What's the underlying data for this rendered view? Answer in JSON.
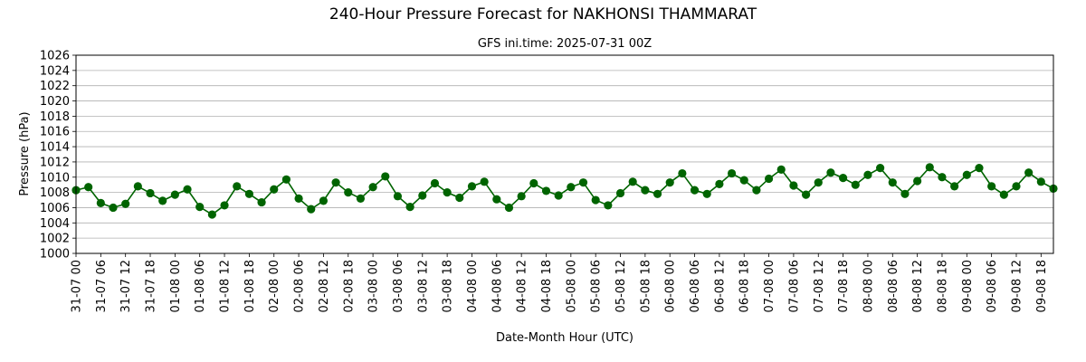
{
  "chart_data": {
    "type": "line",
    "title": "240-Hour Pressure Forecast for NAKHONSI THAMMARAT",
    "subtitle": "GFS ini.time: 2025-07-31 00Z",
    "xlabel": "Date-Month Hour (UTC)",
    "ylabel": "Pressure (hPa)",
    "ylim": [
      1000,
      1026
    ],
    "yticks": [
      1000,
      1002,
      1004,
      1006,
      1008,
      1010,
      1012,
      1014,
      1016,
      1018,
      1020,
      1022,
      1024,
      1026
    ],
    "grid": "horizontal",
    "line_color": "#006400",
    "x": [
      "31-07 00",
      "31-07 03",
      "31-07 06",
      "31-07 09",
      "31-07 12",
      "31-07 15",
      "31-07 18",
      "31-07 21",
      "01-08 00",
      "01-08 03",
      "01-08 06",
      "01-08 09",
      "01-08 12",
      "01-08 15",
      "01-08 18",
      "01-08 21",
      "02-08 00",
      "02-08 03",
      "02-08 06",
      "02-08 09",
      "02-08 12",
      "02-08 15",
      "02-08 18",
      "02-08 21",
      "03-08 00",
      "03-08 03",
      "03-08 06",
      "03-08 09",
      "03-08 12",
      "03-08 15",
      "03-08 18",
      "03-08 21",
      "04-08 00",
      "04-08 03",
      "04-08 06",
      "04-08 09",
      "04-08 12",
      "04-08 15",
      "04-08 18",
      "04-08 21",
      "05-08 00",
      "05-08 03",
      "05-08 06",
      "05-08 09",
      "05-08 12",
      "05-08 15",
      "05-08 18",
      "05-08 21",
      "06-08 00",
      "06-08 03",
      "06-08 06",
      "06-08 09",
      "06-08 12",
      "06-08 15",
      "06-08 18",
      "06-08 21",
      "07-08 00",
      "07-08 03",
      "07-08 06",
      "07-08 09",
      "07-08 12",
      "07-08 15",
      "07-08 18",
      "07-08 21",
      "08-08 00",
      "08-08 03",
      "08-08 06",
      "08-08 09",
      "08-08 12",
      "08-08 15",
      "08-08 18",
      "08-08 21",
      "09-08 00",
      "09-08 03",
      "09-08 06",
      "09-08 09",
      "09-08 12",
      "09-08 15",
      "09-08 18",
      "09-08 21"
    ],
    "xticks": [
      "31-07 00",
      "31-07 06",
      "31-07 12",
      "31-07 18",
      "01-08 00",
      "01-08 06",
      "01-08 12",
      "01-08 18",
      "02-08 00",
      "02-08 06",
      "02-08 12",
      "02-08 18",
      "03-08 00",
      "03-08 06",
      "03-08 12",
      "03-08 18",
      "04-08 00",
      "04-08 06",
      "04-08 12",
      "04-08 18",
      "05-08 00",
      "05-08 06",
      "05-08 12",
      "05-08 18",
      "06-08 00",
      "06-08 06",
      "06-08 12",
      "06-08 18",
      "07-08 00",
      "07-08 06",
      "07-08 12",
      "07-08 18",
      "08-08 00",
      "08-08 06",
      "08-08 12",
      "08-08 18",
      "09-08 00",
      "09-08 06",
      "09-08 12",
      "09-08 18"
    ],
    "series": [
      {
        "values": [
          1008.3,
          1008.7,
          1006.6,
          1006.0,
          1006.5,
          1008.8,
          1007.9,
          1006.9,
          1007.7,
          1008.4,
          1006.1,
          1005.1,
          1006.3,
          1008.8,
          1007.8,
          1006.7,
          1008.4,
          1009.7,
          1007.2,
          1005.8,
          1006.9,
          1009.3,
          1008.0,
          1007.2,
          1008.7,
          1010.1,
          1007.5,
          1006.1,
          1007.6,
          1009.2,
          1008.0,
          1007.3,
          1008.8,
          1009.4,
          1007.1,
          1006.0,
          1007.5,
          1009.2,
          1008.2,
          1007.6,
          1008.7,
          1009.3,
          1007.0,
          1006.3,
          1007.9,
          1009.4,
          1008.3,
          1007.8,
          1009.3,
          1010.5,
          1008.3,
          1007.8,
          1009.1,
          1010.5,
          1009.6,
          1008.3,
          1009.8,
          1011.0,
          1008.9,
          1007.7,
          1009.3,
          1010.6,
          1009.9,
          1009.0,
          1010.3,
          1011.2,
          1009.3,
          1007.8,
          1009.5,
          1011.3,
          1010.0,
          1008.8,
          1010.3,
          1011.2,
          1008.8,
          1007.7,
          1008.8,
          1010.6,
          1009.4,
          1008.5
        ]
      }
    ]
  }
}
